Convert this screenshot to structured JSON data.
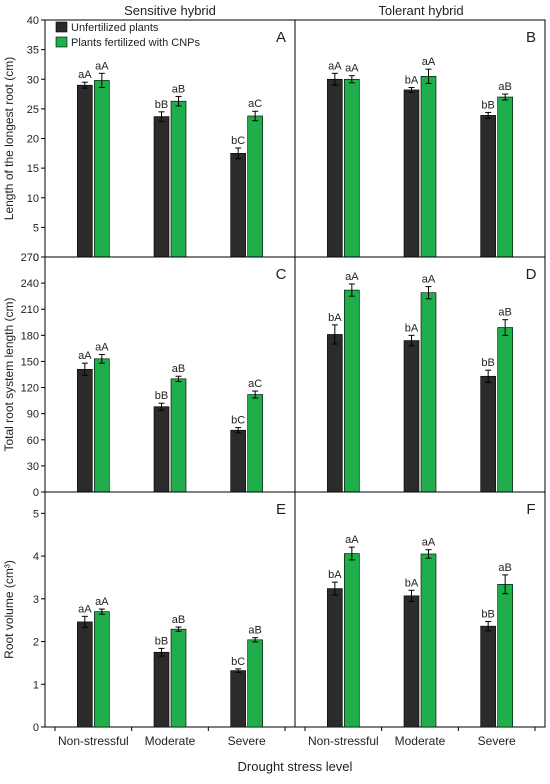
{
  "figure": {
    "column_titles": [
      "Sensitive hybrid",
      "Tolerant hybrid"
    ],
    "x_axis_label": "Drought stress level",
    "categories": [
      "Non-stressful",
      "Moderate",
      "Severe"
    ],
    "legend": {
      "placement": "top-left",
      "entries": [
        {
          "name": "Unfertilized plants",
          "color": "#2b2b2b"
        },
        {
          "name": "Plants fertilized with CNPs",
          "color": "#1fae4b"
        }
      ]
    },
    "colors": {
      "unfertilized": "#2b2b2b",
      "fertilized": "#1fae4b",
      "axis": "#000000"
    }
  },
  "chart_data": [
    {
      "panel": "A",
      "row": 0,
      "col": 0,
      "type": "bar",
      "ylabel": "Length of the longest root (cm)",
      "ylim": [
        0,
        40
      ],
      "yticks": [
        0,
        5,
        10,
        15,
        20,
        25,
        30,
        35,
        40
      ],
      "categories": [
        "Non-stressful",
        "Moderate",
        "Severe"
      ],
      "series": [
        {
          "name": "Unfertilized plants",
          "values": [
            29.0,
            23.7,
            17.5
          ],
          "errors": [
            0.5,
            0.8,
            0.9
          ],
          "labels": [
            "aA",
            "bB",
            "bC"
          ]
        },
        {
          "name": "Plants fertilized with CNPs",
          "values": [
            29.8,
            26.3,
            23.8
          ],
          "errors": [
            1.2,
            0.8,
            0.8
          ],
          "labels": [
            "aA",
            "aB",
            "aC"
          ]
        }
      ]
    },
    {
      "panel": "B",
      "row": 0,
      "col": 1,
      "type": "bar",
      "ylabel": "",
      "ylim": [
        0,
        40
      ],
      "yticks": [],
      "categories": [
        "Non-stressful",
        "Moderate",
        "Severe"
      ],
      "series": [
        {
          "name": "Unfertilized plants",
          "values": [
            30.0,
            28.2,
            23.9
          ],
          "errors": [
            1.0,
            0.4,
            0.5
          ],
          "labels": [
            "aA",
            "bA",
            "bB"
          ]
        },
        {
          "name": "Plants fertilized with CNPs",
          "values": [
            30.0,
            30.5,
            27.0
          ],
          "errors": [
            0.6,
            1.2,
            0.5
          ],
          "labels": [
            "aA",
            "aA",
            "aB"
          ]
        }
      ]
    },
    {
      "panel": "C",
      "row": 1,
      "col": 0,
      "type": "bar",
      "ylabel": "Total root system length (cm)",
      "ylim": [
        0,
        270
      ],
      "yticks": [
        0,
        30,
        60,
        90,
        120,
        150,
        180,
        210,
        240,
        270
      ],
      "categories": [
        "Non-stressful",
        "Moderate",
        "Severe"
      ],
      "series": [
        {
          "name": "Unfertilized plants",
          "values": [
            141,
            98,
            71
          ],
          "errors": [
            7,
            4,
            3
          ],
          "labels": [
            "aA",
            "bB",
            "bC"
          ]
        },
        {
          "name": "Plants fertilized with CNPs",
          "values": [
            153,
            130,
            112
          ],
          "errors": [
            5,
            3,
            4
          ],
          "labels": [
            "aA",
            "aB",
            "aC"
          ]
        }
      ]
    },
    {
      "panel": "D",
      "row": 1,
      "col": 1,
      "type": "bar",
      "ylabel": "",
      "ylim": [
        0,
        270
      ],
      "yticks": [],
      "categories": [
        "Non-stressful",
        "Moderate",
        "Severe"
      ],
      "series": [
        {
          "name": "Unfertilized plants",
          "values": [
            181,
            174,
            133
          ],
          "errors": [
            11,
            6,
            7
          ],
          "labels": [
            "bA",
            "bA",
            "bB"
          ]
        },
        {
          "name": "Plants fertilized with CNPs",
          "values": [
            232,
            229,
            189
          ],
          "errors": [
            7,
            7,
            9
          ],
          "labels": [
            "aA",
            "aA",
            "aB"
          ]
        }
      ]
    },
    {
      "panel": "E",
      "row": 2,
      "col": 0,
      "type": "bar",
      "ylabel": "Root volume (cm³)",
      "ylim": [
        0,
        5.5
      ],
      "yticks": [
        0,
        1,
        2,
        3,
        4,
        5
      ],
      "categories": [
        "Non-stressful",
        "Moderate",
        "Severe"
      ],
      "series": [
        {
          "name": "Unfertilized plants",
          "values": [
            2.46,
            1.75,
            1.32
          ],
          "errors": [
            0.13,
            0.09,
            0.04
          ],
          "labels": [
            "aA",
            "bB",
            "bC"
          ]
        },
        {
          "name": "Plants fertilized with CNPs",
          "values": [
            2.7,
            2.29,
            2.04
          ],
          "errors": [
            0.06,
            0.05,
            0.05
          ],
          "labels": [
            "aA",
            "aB",
            "aB"
          ]
        }
      ]
    },
    {
      "panel": "F",
      "row": 2,
      "col": 1,
      "type": "bar",
      "ylabel": "",
      "ylim": [
        0,
        5.5
      ],
      "yticks": [],
      "categories": [
        "Non-stressful",
        "Moderate",
        "Severe"
      ],
      "series": [
        {
          "name": "Unfertilized plants",
          "values": [
            3.24,
            3.07,
            2.36
          ],
          "errors": [
            0.15,
            0.13,
            0.11
          ],
          "labels": [
            "bA",
            "bA",
            "bB"
          ]
        },
        {
          "name": "Plants fertilized with CNPs",
          "values": [
            4.06,
            4.05,
            3.34
          ],
          "errors": [
            0.15,
            0.1,
            0.22
          ],
          "labels": [
            "aA",
            "aA",
            "aB"
          ]
        }
      ]
    }
  ]
}
